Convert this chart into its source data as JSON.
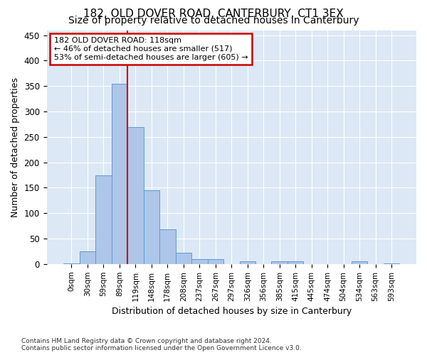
{
  "title": "182, OLD DOVER ROAD, CANTERBURY, CT1 3EX",
  "subtitle": "Size of property relative to detached houses in Canterbury",
  "xlabel": "Distribution of detached houses by size in Canterbury",
  "ylabel": "Number of detached properties",
  "bar_labels": [
    "0sqm",
    "30sqm",
    "59sqm",
    "89sqm",
    "119sqm",
    "148sqm",
    "178sqm",
    "208sqm",
    "237sqm",
    "267sqm",
    "297sqm",
    "326sqm",
    "356sqm",
    "385sqm",
    "415sqm",
    "445sqm",
    "474sqm",
    "504sqm",
    "534sqm",
    "563sqm",
    "593sqm"
  ],
  "bar_values": [
    1,
    25,
    175,
    355,
    270,
    145,
    68,
    22,
    10,
    10,
    0,
    5,
    0,
    5,
    5,
    0,
    0,
    0,
    5,
    0,
    1
  ],
  "bar_color": "#aec6e8",
  "bar_edge_color": "#5b9bd5",
  "property_line_x": 3.5,
  "property_line_label": "182 OLD DOVER ROAD: 118sqm",
  "annotation_line1": "← 46% of detached houses are smaller (517)",
  "annotation_line2": "53% of semi-detached houses are larger (605) →",
  "annotation_box_color": "#ffffff",
  "annotation_box_edge": "#cc0000",
  "vline_color": "#cc0000",
  "ylim": [
    0,
    460
  ],
  "yticks": [
    0,
    50,
    100,
    150,
    200,
    250,
    300,
    350,
    400,
    450
  ],
  "footer_line1": "Contains HM Land Registry data © Crown copyright and database right 2024.",
  "footer_line2": "Contains public sector information licensed under the Open Government Licence v3.0.",
  "bg_color": "#dce8f5",
  "fig_bg_color": "#ffffff",
  "title_fontsize": 11,
  "subtitle_fontsize": 10
}
